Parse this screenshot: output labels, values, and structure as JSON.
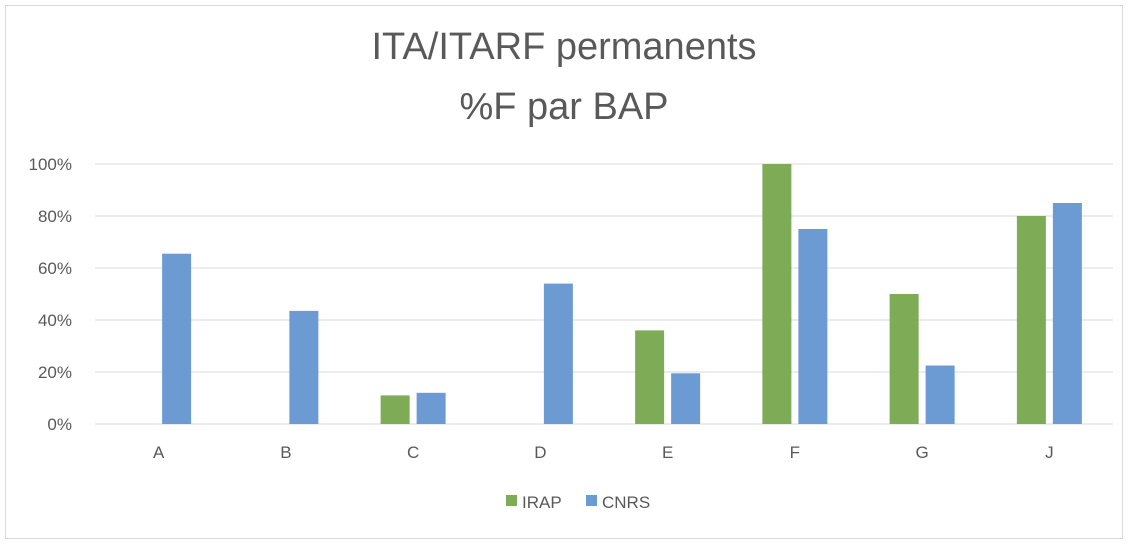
{
  "chart_data": {
    "type": "bar",
    "title": "ITA/ITARF permanents",
    "subtitle": "%F par BAP",
    "xlabel": "",
    "ylabel": "",
    "categories": [
      "A",
      "B",
      "C",
      "D",
      "E",
      "F",
      "G",
      "J"
    ],
    "series": [
      {
        "name": "IRAP",
        "color": "#7eab55",
        "values": [
          null,
          null,
          11,
          null,
          36,
          100,
          50,
          80
        ]
      },
      {
        "name": "CNRS",
        "color": "#6b9bd2",
        "values": [
          65.5,
          43.5,
          12,
          54,
          19.5,
          75,
          22.5,
          85
        ]
      }
    ],
    "ylim": [
      0,
      100
    ],
    "yticks": [
      "0%",
      "20%",
      "40%",
      "60%",
      "80%",
      "100%"
    ],
    "ytick_values": [
      0,
      20,
      40,
      60,
      80,
      100
    ],
    "grid": true,
    "legend_position": "bottom"
  }
}
